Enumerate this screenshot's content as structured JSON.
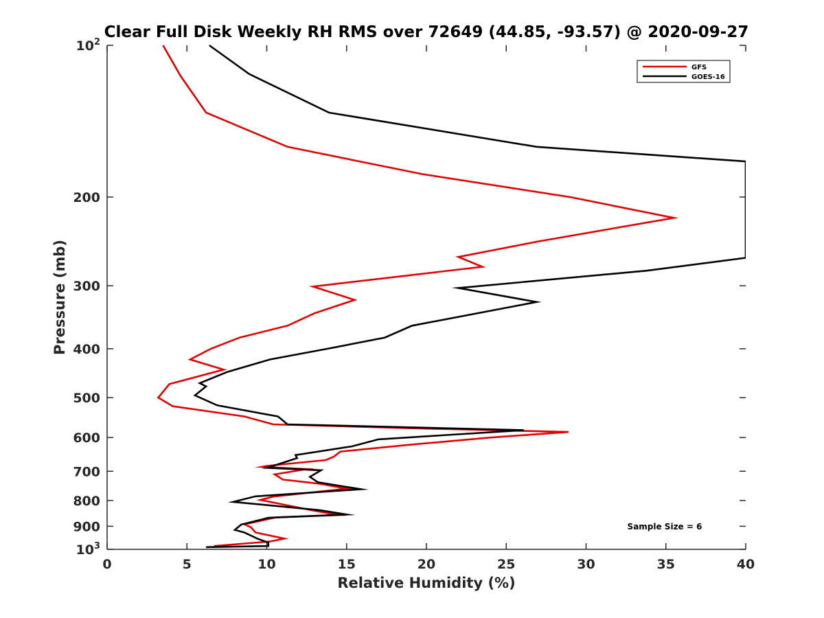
{
  "chart_data": {
    "type": "line",
    "title": "Clear Full Disk Weekly RH RMS over 72649 (44.85, -93.57) @ 2020-09-27",
    "xlabel": "Relative Humidity (%)",
    "ylabel": "Pressure (mb)",
    "xlim": [
      0,
      40
    ],
    "ylim": [
      100,
      1000
    ],
    "yscale": "log",
    "y_reversed": true,
    "grid": false,
    "legend_position": "top-right",
    "x_ticks": [
      0,
      5,
      10,
      15,
      20,
      25,
      30,
      35,
      40
    ],
    "y_ticks": [
      {
        "value": 100,
        "base": "10",
        "exp": "2"
      },
      {
        "value": 200,
        "label": "200"
      },
      {
        "value": 300,
        "label": "300"
      },
      {
        "value": 400,
        "label": "400"
      },
      {
        "value": 500,
        "label": "500"
      },
      {
        "value": 600,
        "label": "600"
      },
      {
        "value": 700,
        "label": "700"
      },
      {
        "value": 800,
        "label": "800"
      },
      {
        "value": 900,
        "label": "900"
      },
      {
        "value": 1000,
        "base": "10",
        "exp": "3"
      }
    ],
    "annotation": "Sample Size = 6",
    "series": [
      {
        "name": "GFS",
        "color": "#e00000",
        "points": [
          [
            3.5,
            100
          ],
          [
            4.6,
            115
          ],
          [
            6.2,
            136
          ],
          [
            11.3,
            159
          ],
          [
            19.7,
            180
          ],
          [
            29.0,
            200
          ],
          [
            35.5,
            220
          ],
          [
            27.0,
            245
          ],
          [
            22.0,
            263
          ],
          [
            23.5,
            275
          ],
          [
            12.9,
            301
          ],
          [
            15.5,
            320
          ],
          [
            13.0,
            340
          ],
          [
            11.3,
            360
          ],
          [
            8.3,
            380
          ],
          [
            6.5,
            400
          ],
          [
            5.2,
            420
          ],
          [
            7.3,
            440
          ],
          [
            3.9,
            470
          ],
          [
            3.2,
            500
          ],
          [
            4.1,
            520
          ],
          [
            8.6,
            545
          ],
          [
            10.4,
            565
          ],
          [
            19.0,
            575
          ],
          [
            28.9,
            585
          ],
          [
            24.0,
            600
          ],
          [
            19.0,
            620
          ],
          [
            14.6,
            640
          ],
          [
            14.2,
            655
          ],
          [
            13.7,
            665
          ],
          [
            10.0,
            683
          ],
          [
            9.7,
            686
          ],
          [
            12.5,
            693
          ],
          [
            10.5,
            710
          ],
          [
            11.0,
            727
          ],
          [
            13.3,
            741
          ],
          [
            15.0,
            758
          ],
          [
            10.4,
            786
          ],
          [
            9.6,
            798
          ],
          [
            13.1,
            840
          ],
          [
            14.5,
            855
          ],
          [
            10.6,
            864
          ],
          [
            8.6,
            892
          ],
          [
            9.0,
            904
          ],
          [
            9.3,
            926
          ],
          [
            11.1,
            952
          ],
          [
            10.2,
            965
          ],
          [
            6.7,
            985
          ]
        ]
      },
      {
        "name": "GOES-16",
        "color": "#000000",
        "points": [
          [
            6.4,
            100
          ],
          [
            8.9,
            114
          ],
          [
            13.9,
            136
          ],
          [
            26.9,
            159
          ],
          [
            40.0,
            170
          ],
          [
            40.0,
            264
          ],
          [
            33.8,
            280
          ],
          [
            22.0,
            303
          ],
          [
            26.9,
            323
          ],
          [
            19.1,
            360
          ],
          [
            17.4,
            380
          ],
          [
            13.8,
            400
          ],
          [
            10.2,
            420
          ],
          [
            7.5,
            445
          ],
          [
            5.8,
            468
          ],
          [
            6.2,
            475
          ],
          [
            5.5,
            495
          ],
          [
            6.9,
            518
          ],
          [
            10.7,
            545
          ],
          [
            11.3,
            565
          ],
          [
            26.1,
            580
          ],
          [
            17.0,
            605
          ],
          [
            15.3,
            625
          ],
          [
            11.8,
            650
          ],
          [
            11.9,
            659
          ],
          [
            10.4,
            683
          ],
          [
            10.0,
            689
          ],
          [
            13.4,
            697
          ],
          [
            12.7,
            718
          ],
          [
            13.2,
            736
          ],
          [
            15.9,
            760
          ],
          [
            9.3,
            785
          ],
          [
            7.9,
            805
          ],
          [
            13.3,
            836
          ],
          [
            15.0,
            853
          ],
          [
            10.1,
            866
          ],
          [
            8.4,
            893
          ],
          [
            8.0,
            915
          ],
          [
            8.6,
            926
          ],
          [
            9.4,
            952
          ],
          [
            10.1,
            970
          ],
          [
            10.1,
            985
          ],
          [
            6.2,
            990
          ]
        ]
      }
    ]
  }
}
